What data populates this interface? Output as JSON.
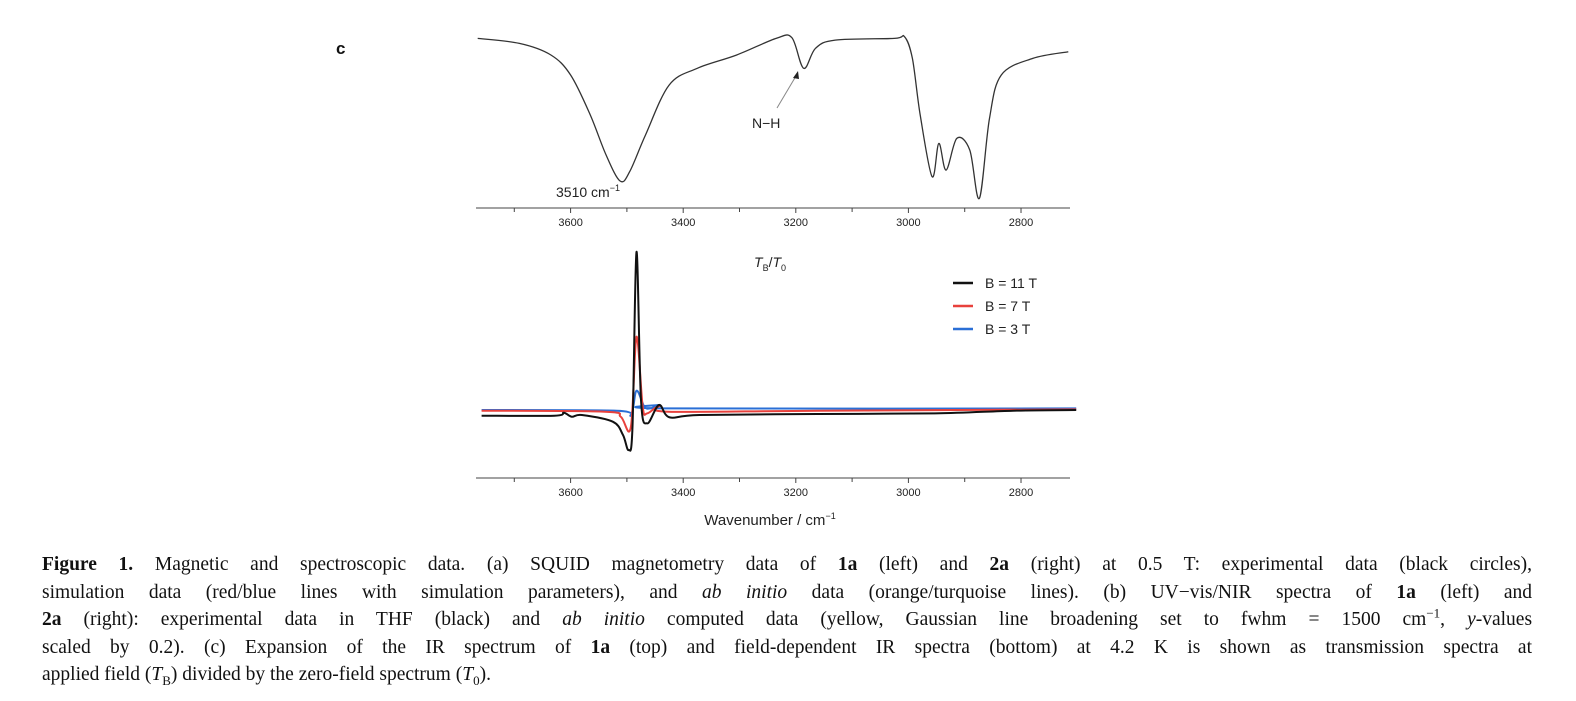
{
  "panel_label": "c",
  "chart_data": [
    {
      "type": "line",
      "name": "IR spectrum of 1a (top)",
      "xlabel": "",
      "ylabel": "",
      "xlim": [
        3768,
        2713
      ],
      "ylim": [
        0,
        1
      ],
      "x_ticks": [
        3600,
        3400,
        3200,
        3000,
        2800
      ],
      "x_ticks_minor": [
        3700,
        3500,
        3300,
        3100,
        2900
      ],
      "annotations": [
        {
          "text": "3510 cm",
          "sup": "−1",
          "x": 3510
        },
        {
          "text": "N−H",
          "x": 3186
        }
      ],
      "series": [
        {
          "name": "1a",
          "color": "#333333",
          "x": [
            3765,
            3691,
            3635,
            3600,
            3565,
            3537,
            3512,
            3495,
            3467,
            3425,
            3375,
            3305,
            3235,
            3207,
            3186,
            3165,
            3130,
            3025,
            3007,
            2993,
            2979,
            2958,
            2946,
            2933,
            2914,
            2891,
            2874,
            2856,
            2835,
            2779,
            2716
          ],
          "y": [
            0.99,
            0.961,
            0.893,
            0.776,
            0.542,
            0.308,
            0.156,
            0.211,
            0.425,
            0.717,
            0.815,
            0.893,
            0.99,
            0.994,
            0.815,
            0.932,
            0.98,
            0.99,
            1.0,
            0.873,
            0.542,
            0.181,
            0.376,
            0.22,
            0.405,
            0.337,
            0.055,
            0.522,
            0.776,
            0.873,
            0.912
          ]
        }
      ]
    },
    {
      "type": "line",
      "name": "Field-dependent IR spectra (bottom)",
      "title": "T_B/T_0",
      "title_parts": {
        "t1": "T",
        "s1": "B",
        "slash": "/",
        "t2": "T",
        "s2": "0"
      },
      "xlabel": "Wavenumber / cm",
      "xlabel_sup": "−1",
      "xlim": [
        3768,
        2713
      ],
      "ylim": [
        -2.03,
        5.12
      ],
      "x_ticks": [
        3600,
        3400,
        3200,
        3000,
        2800
      ],
      "x_ticks_minor": [
        3700,
        3500,
        3300,
        3100,
        2900
      ],
      "legend_position": "top-right",
      "series": [
        {
          "name": "B = 11 T",
          "color": "#111111",
          "x": [
            3758,
            3629,
            3612,
            3598,
            3580,
            3525,
            3507,
            3497,
            3490,
            3483,
            3475,
            3464,
            3443,
            3424,
            3371,
            3162,
            2953,
            2814,
            2702
          ],
          "y": [
            -0.15,
            -0.15,
            -0.06,
            -0.18,
            -0.13,
            -0.33,
            -0.73,
            -1.18,
            -0.48,
            4.77,
            0.32,
            -0.38,
            0.17,
            -0.2,
            -0.13,
            -0.1,
            -0.08,
            0,
            0.02
          ]
        },
        {
          "name": "B = 7 T",
          "color": "#e8413c",
          "x": [
            3758,
            3539,
            3511,
            3493,
            3483,
            3472,
            3464,
            3443,
            3427,
            3162,
            2702
          ],
          "y": [
            0,
            -0.03,
            -0.18,
            -0.5,
            2.22,
            0.12,
            -0.08,
            0.14,
            -0.03,
            0,
            0.04
          ]
        },
        {
          "name": "B = 3 T",
          "color": "#2a6fd6",
          "x": [
            3758,
            3518,
            3493,
            3483,
            3469,
            3458,
            3443,
            3427,
            2702
          ],
          "y": [
            0.02,
            0,
            -0.13,
            0.6,
            0.12,
            0.07,
            0.17,
            0.07,
            0.07
          ]
        }
      ]
    }
  ],
  "caption": [
    [
      {
        "t": "Figure 1.",
        "s": "b"
      },
      {
        "t": " Magnetic and spectroscopic data. (a) SQUID magnetometry data of "
      },
      {
        "t": "1a",
        "s": "b"
      },
      {
        "t": " (left) and "
      },
      {
        "t": "2a",
        "s": "b"
      },
      {
        "t": " (right) at 0.5 T: experimental data (black circles),"
      }
    ],
    [
      {
        "t": "simulation data (red/blue lines with simulation parameters), and "
      },
      {
        "t": "ab initio",
        "s": "i"
      },
      {
        "t": " data (orange/turquoise lines). (b) UV−vis/NIR spectra of "
      },
      {
        "t": "1a",
        "s": "b"
      },
      {
        "t": " (left) and"
      }
    ],
    [
      {
        "t": "2a",
        "s": "b"
      },
      {
        "t": " (right): experimental data in THF (black) and "
      },
      {
        "t": "ab initio",
        "s": "i"
      },
      {
        "t": " computed data (yellow, Gaussian line broadening set to fwhm = 1500 cm"
      },
      {
        "t": "−1",
        "s": "sup"
      },
      {
        "t": ", "
      },
      {
        "t": "y",
        "s": "i"
      },
      {
        "t": "-values"
      }
    ],
    [
      {
        "t": "scaled by 0.2). (c) Expansion of the IR spectrum of "
      },
      {
        "t": "1a",
        "s": "b"
      },
      {
        "t": " (top) and field-dependent IR spectra (bottom) at 4.2 K is shown as transmission spectra at"
      }
    ],
    [
      {
        "t": "applied field ("
      },
      {
        "t": "T",
        "s": "i"
      },
      {
        "t": "B",
        "s": "sub"
      },
      {
        "t": ") divided by the zero-field spectrum ("
      },
      {
        "t": "T",
        "s": "i"
      },
      {
        "t": "0",
        "s": "sub"
      },
      {
        "t": ")."
      }
    ]
  ]
}
